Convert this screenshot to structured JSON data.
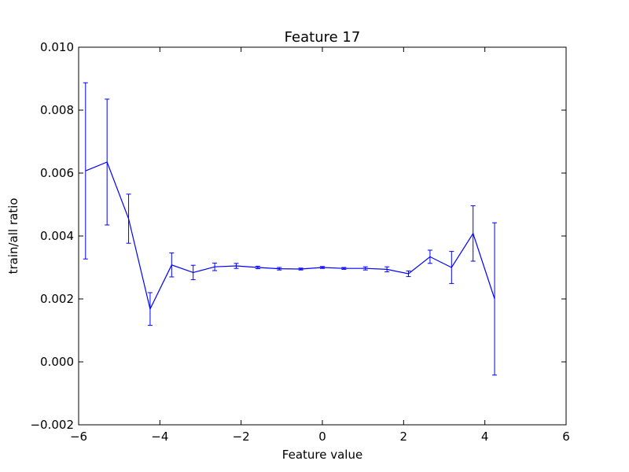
{
  "chart_data": {
    "type": "line",
    "title": "Feature 17",
    "xlabel": "Feature value",
    "ylabel": "train/all ratio",
    "xlim": [
      -6,
      6
    ],
    "ylim": [
      -0.002,
      0.01
    ],
    "xticks": [
      -6,
      -4,
      -2,
      0,
      2,
      4,
      6
    ],
    "xtick_labels": [
      "−6",
      "−4",
      "−2",
      "0",
      "2",
      "4",
      "6"
    ],
    "yticks": [
      -0.002,
      0.0,
      0.002,
      0.004,
      0.006,
      0.008,
      0.01
    ],
    "ytick_labels": [
      "−0.002",
      "0.000",
      "0.002",
      "0.004",
      "0.006",
      "0.008",
      "0.010"
    ],
    "grid": false,
    "line_color": "#0000ff",
    "series": [
      {
        "x": [
          -5.83,
          -5.3,
          -4.77,
          -4.24,
          -3.71,
          -3.18,
          -2.65,
          -2.12,
          -1.59,
          -1.06,
          -0.53,
          0.0,
          0.53,
          1.06,
          1.59,
          2.12,
          2.65,
          3.18,
          3.71,
          4.24
        ],
        "y": [
          0.00607,
          0.00635,
          0.00455,
          0.00168,
          0.00308,
          0.00284,
          0.00302,
          0.00305,
          0.003,
          0.00296,
          0.00295,
          0.003,
          0.00297,
          0.00297,
          0.00294,
          0.0028,
          0.00334,
          0.003,
          0.00408,
          0.002
        ],
        "yerr": [
          0.0028,
          0.002,
          0.00078,
          0.00052,
          0.00038,
          0.00023,
          0.00012,
          8e-05,
          4e-05,
          4e-05,
          3e-05,
          3e-05,
          3e-05,
          5e-05,
          8e-05,
          9e-05,
          0.00021,
          0.00051,
          0.00088,
          0.00242
        ]
      }
    ]
  }
}
